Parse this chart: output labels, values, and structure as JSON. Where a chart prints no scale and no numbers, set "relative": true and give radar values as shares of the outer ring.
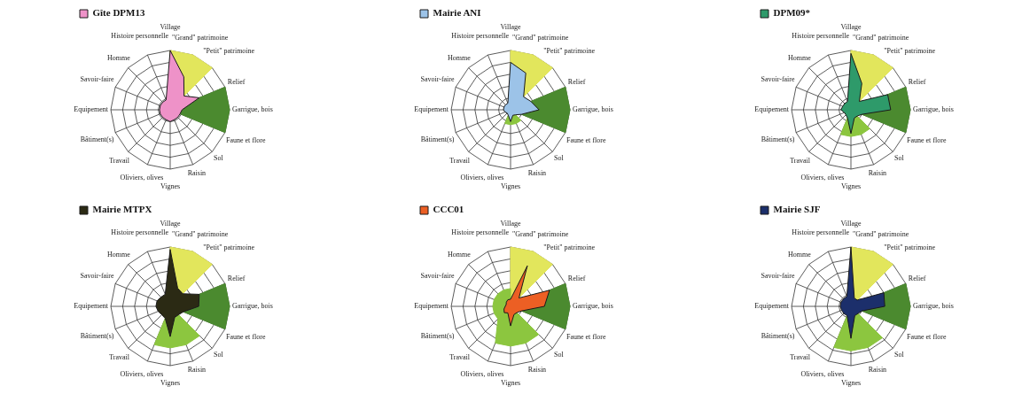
{
  "chart_data": [
    {
      "type": "radar",
      "relative": true,
      "grid": true,
      "legend": "top left",
      "marker": "none",
      "categories": [
        "Village",
        "\"Grand\" patrimoine",
        "\"Petit\" patrimoine",
        "Relief",
        "Garrigue, bois",
        "Faune et flore",
        "Sol",
        "Raisin",
        "Vignes",
        "Oliviers, olives",
        "Travail",
        "Bâtiment(s)",
        "Equipement",
        "Savoir-faire",
        "Homme",
        "Histoire personnelle"
      ],
      "series": [
        {
          "color": "#e2e65c",
          "values": [
            1,
            1,
            1,
            0,
            0,
            0,
            0,
            0,
            0,
            0,
            0,
            0,
            0,
            0,
            0,
            0
          ]
        },
        {
          "color": "#4b8a2f",
          "values": [
            0,
            0,
            0,
            1,
            1,
            1,
            0,
            0,
            0,
            0,
            0,
            0,
            0,
            0,
            0,
            0
          ]
        },
        {
          "name": "Gîte DPM13",
          "color": "#ee92c8",
          "values": [
            1,
            0.6,
            0.33,
            0.53,
            0.2,
            0.18,
            0.18,
            0.18,
            0.2,
            0.18,
            0.18,
            0.18,
            0.18,
            0.18,
            0.18,
            0.18
          ]
        }
      ]
    },
    {
      "type": "radar",
      "relative": true,
      "grid": true,
      "legend": "top left",
      "marker": "none",
      "categories": [
        "Village",
        "\"Grand\" patrimoine",
        "\"Petit\" patrimoine",
        "Relief",
        "Garrigue, bois",
        "Faune et flore",
        "Sol",
        "Raisin",
        "Vignes",
        "Oliviers, olives",
        "Travail",
        "Bâtiment(s)",
        "Equipement",
        "Savoir-faire",
        "Homme",
        "Histoire personnelle"
      ],
      "series": [
        {
          "color": "#e2e65c",
          "values": [
            1,
            1,
            1,
            0,
            0,
            0,
            0,
            0,
            0,
            0,
            0,
            0,
            0,
            0,
            0,
            0
          ]
        },
        {
          "color": "#4b8a2f",
          "values": [
            0,
            0,
            0,
            1,
            1,
            1,
            0,
            0,
            0,
            0,
            0,
            0,
            0,
            0,
            0,
            0
          ]
        },
        {
          "color": "#8cc63f",
          "values": [
            0,
            0,
            0,
            0,
            0,
            0,
            0.25,
            0.25,
            0.25,
            0.25,
            0,
            0,
            0,
            0,
            0,
            0
          ]
        },
        {
          "name": "Mairie ANI",
          "color": "#9cc3e8",
          "values": [
            0.8,
            0.67,
            0.31,
            0.37,
            0.48,
            0.2,
            0.12,
            0.1,
            0.2,
            0.1,
            0.08,
            0.1,
            0.12,
            0.12,
            0.12,
            0.12
          ]
        }
      ]
    },
    {
      "type": "radar",
      "relative": true,
      "grid": true,
      "legend": "top left",
      "marker": "none",
      "categories": [
        "Village",
        "\"Grand\" patrimoine",
        "\"Petit\" patrimoine",
        "Relief",
        "Garrigue, bois",
        "Faune et flore",
        "Sol",
        "Raisin",
        "Vignes",
        "Oliviers, olives",
        "Travail",
        "Bâtiment(s)",
        "Equipement",
        "Savoir-faire",
        "Homme",
        "Histoire personnelle"
      ],
      "series": [
        {
          "color": "#e2e65c",
          "values": [
            1,
            1,
            1,
            0,
            0,
            0,
            0,
            0,
            0,
            0,
            0,
            0,
            0,
            0,
            0,
            0
          ]
        },
        {
          "color": "#4b8a2f",
          "values": [
            0,
            0,
            0,
            1,
            1,
            1,
            0,
            0,
            0,
            0,
            0,
            0,
            0,
            0,
            0,
            0
          ]
        },
        {
          "color": "#8cc63f",
          "values": [
            0,
            0,
            0,
            0,
            0,
            0,
            0.45,
            0.45,
            0.45,
            0.45,
            0,
            0,
            0,
            0,
            0,
            0
          ]
        },
        {
          "name": "DPM09*",
          "color": "#2e9a6a",
          "values": [
            0.95,
            0.48,
            0.2,
            0.67,
            0.67,
            0.2,
            0.15,
            0.15,
            0.4,
            0.15,
            0.12,
            0.12,
            0.17,
            0.15,
            0.15,
            0.15
          ]
        }
      ]
    },
    {
      "type": "radar",
      "relative": true,
      "grid": true,
      "legend": "top left",
      "marker": "none",
      "categories": [
        "Village",
        "\"Grand\" patrimoine",
        "\"Petit\" patrimoine",
        "Relief",
        "Garrigue, bois",
        "Faune et flore",
        "Sol",
        "Raisin",
        "Vignes",
        "Oliviers, olives",
        "Travail",
        "Bâtiment(s)",
        "Equipement",
        "Savoir-faire",
        "Homme",
        "Histoire personnelle"
      ],
      "series": [
        {
          "color": "#e2e65c",
          "values": [
            1,
            1,
            1,
            0,
            0,
            0,
            0,
            0,
            0,
            0,
            0,
            0,
            0,
            0,
            0,
            0
          ]
        },
        {
          "color": "#4b8a2f",
          "values": [
            0,
            0,
            0,
            1,
            1,
            1,
            0,
            0,
            0,
            0,
            0,
            0,
            0,
            0,
            0,
            0
          ]
        },
        {
          "color": "#8cc63f",
          "values": [
            0,
            0,
            0,
            0,
            0,
            0,
            0.7,
            0.7,
            0.7,
            0.7,
            0,
            0,
            0,
            0,
            0,
            0
          ]
        },
        {
          "name": "Mairie MTPX",
          "color": "#2b2a14",
          "values": [
            0.96,
            0.33,
            0.3,
            0.53,
            0.48,
            0.24,
            0.2,
            0.2,
            0.51,
            0.22,
            0.2,
            0.22,
            0.24,
            0.24,
            0.22,
            0.22
          ]
        }
      ]
    },
    {
      "type": "radar",
      "relative": true,
      "grid": true,
      "legend": "top left",
      "marker": "none",
      "categories": [
        "Village",
        "\"Grand\" patrimoine",
        "\"Petit\" patrimoine",
        "Relief",
        "Garrigue, bois",
        "Faune et flore",
        "Sol",
        "Raisin",
        "Vignes",
        "Oliviers, olives",
        "Travail",
        "Bâtiment(s)",
        "Equipement",
        "Savoir-faire",
        "Homme",
        "Histoire personnelle"
      ],
      "series": [
        {
          "color": "#e2e65c",
          "values": [
            1,
            1,
            1,
            0,
            0,
            0,
            0,
            0,
            0,
            0,
            0,
            0,
            0,
            0,
            0,
            0
          ]
        },
        {
          "color": "#4b8a2f",
          "values": [
            0,
            0,
            0,
            1,
            1,
            1,
            0,
            0,
            0,
            0,
            0,
            0,
            0,
            0,
            0,
            0
          ]
        },
        {
          "color": "#8cc63f",
          "values": [
            0.3,
            0,
            0,
            0,
            0,
            0,
            0.67,
            0.67,
            0.67,
            0.67,
            0.3,
            0.3,
            0.3,
            0.3,
            0.3,
            0.3
          ]
        },
        {
          "name": "CCC01",
          "color": "#ec5f24",
          "values": [
            0.12,
            0.74,
            0.2,
            0.71,
            0.57,
            0.2,
            0.15,
            0.15,
            0.33,
            0.12,
            0.15,
            0.12,
            0.09,
            0.08,
            0.1,
            0.12
          ]
        }
      ]
    },
    {
      "type": "radar",
      "relative": true,
      "grid": true,
      "legend": "top left",
      "marker": "none",
      "categories": [
        "Village",
        "\"Grand\" patrimoine",
        "\"Petit\" patrimoine",
        "Relief",
        "Garrigue, bois",
        "Faune et flore",
        "Sol",
        "Raisin",
        "Vignes",
        "Oliviers, olives",
        "Travail",
        "Bâtiment(s)",
        "Equipement",
        "Savoir-faire",
        "Homme",
        "Histoire personnelle"
      ],
      "series": [
        {
          "color": "#e2e65c",
          "values": [
            1,
            1,
            1,
            0,
            0,
            0,
            0,
            0,
            0,
            0,
            0,
            0,
            0,
            0,
            0,
            0
          ]
        },
        {
          "color": "#4b8a2f",
          "values": [
            0,
            0,
            0,
            1,
            1,
            1,
            0,
            0,
            0,
            0,
            0,
            0,
            0,
            0,
            0,
            0
          ]
        },
        {
          "color": "#8cc63f",
          "values": [
            0,
            0,
            0,
            0,
            0,
            0,
            0.75,
            0.75,
            0.75,
            0.75,
            0,
            0,
            0,
            0,
            0,
            0
          ]
        },
        {
          "name": "Mairie SJF",
          "color": "#1c2f6b",
          "values": [
            1,
            0.15,
            0.15,
            0.6,
            0.57,
            0.2,
            0.17,
            0.17,
            0.54,
            0.17,
            0.17,
            0.17,
            0.18,
            0.18,
            0.18,
            0.18
          ]
        }
      ]
    }
  ]
}
